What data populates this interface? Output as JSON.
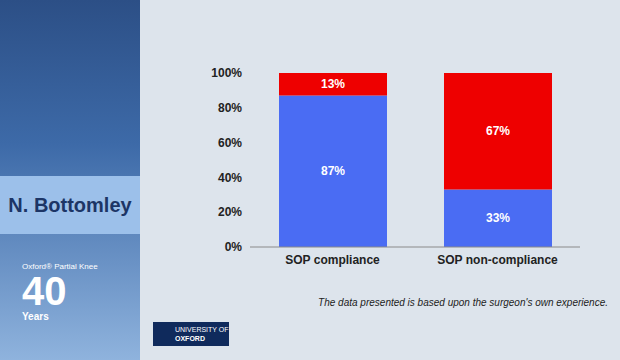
{
  "chart_data": {
    "type": "bar",
    "categories": [
      "SOP compliance",
      "SOP non-compliance"
    ],
    "series": [
      {
        "color": "#4a6cf3",
        "values": [
          87,
          33
        ],
        "value_labels": [
          "87%",
          "33%"
        ]
      },
      {
        "color": "#ee0000",
        "values": [
          13,
          67
        ],
        "value_labels": [
          "13%",
          "67%"
        ]
      }
    ],
    "stacked": true,
    "data_labels": true,
    "grid": false,
    "ylim": [
      0,
      100
    ],
    "yticks": [
      {
        "value": 0,
        "label": "0%"
      },
      {
        "value": 20,
        "label": "20%"
      },
      {
        "value": 40,
        "label": "40%"
      },
      {
        "value": 60,
        "label": "60%"
      },
      {
        "value": 80,
        "label": "80%"
      },
      {
        "value": 100,
        "label": "100%"
      }
    ],
    "annotations": [
      "The data presented is based upon the surgeon's own experience."
    ]
  },
  "slide": {
    "speaker": "N. Bottomley",
    "event_logo": [
      "Oxford® Partial Knee",
      "40",
      "Years"
    ],
    "institution": [
      "UNIVERSITY OF",
      "OXFORD"
    ]
  }
}
